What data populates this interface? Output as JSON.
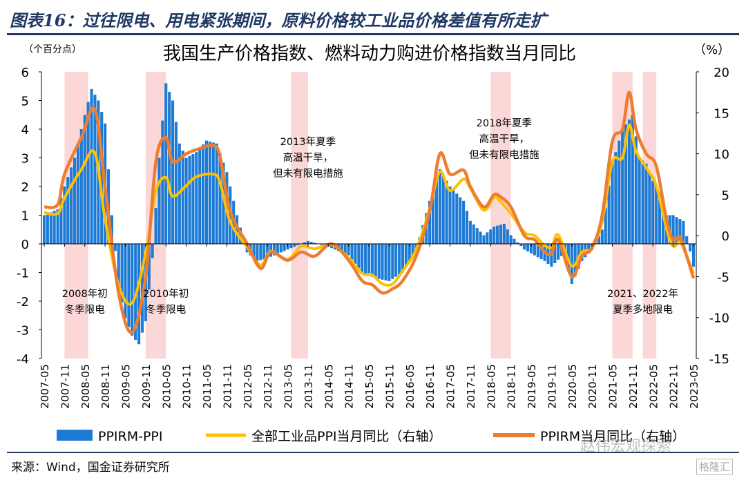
{
  "heading": "图表16：过往限电、用电紧张期间，原料价格较工业品价格差值有所走扩",
  "source": "来源：Wind，国金证券研究所",
  "watermark": "赵伟宏观探索",
  "logo": "格隆汇",
  "colors": {
    "bar": "#1d7bd6",
    "ppi": "#ffc000",
    "ppirm": "#ed7d31",
    "shade": "#fbd7d7",
    "axis": "#000000"
  },
  "chart_data": {
    "type": "bar",
    "title": "我国生产价格指数、燃料动力购进价格指数当月同比",
    "left_unit": "（个百分点）",
    "right_unit": "（%）",
    "left_ylim": [
      -4,
      6
    ],
    "left_ticks": [
      "6",
      "5",
      "4",
      "3",
      "2",
      "1",
      "0",
      "-1",
      "-2",
      "-3",
      "-4"
    ],
    "right_ylim": [
      -15,
      20
    ],
    "right_ticks": [
      "20",
      "15",
      "10",
      "5",
      "0",
      "-5",
      "-10",
      "-15"
    ],
    "x_ticks": [
      "2007-05",
      "2007-11",
      "2008-05",
      "2008-11",
      "2009-05",
      "2009-11",
      "2010-05",
      "2010-11",
      "2011-05",
      "2011-11",
      "2012-05",
      "2012-11",
      "2013-05",
      "2013-11",
      "2014-05",
      "2014-11",
      "2015-05",
      "2015-11",
      "2016-05",
      "2016-11",
      "2017-05",
      "2017-11",
      "2018-05",
      "2018-11",
      "2019-05",
      "2019-11",
      "2020-05",
      "2020-11",
      "2021-05",
      "2021-11",
      "2022-05",
      "2022-11",
      "2023-05"
    ],
    "legend": [
      {
        "name": "PPIRM-PPI",
        "kind": "bar"
      },
      {
        "name": "全部工业品PPI当月同比（右轴）",
        "kind": "line"
      },
      {
        "name": "PPIRM当月同比（右轴）",
        "kind": "line"
      }
    ],
    "shaded_periods": [
      {
        "start": "2007-11",
        "end": "2008-06"
      },
      {
        "start": "2009-11",
        "end": "2010-05"
      },
      {
        "start": "2013-06",
        "end": "2013-11"
      },
      {
        "start": "2018-05",
        "end": "2018-11"
      },
      {
        "start": "2021-05",
        "end": "2021-11"
      },
      {
        "start": "2022-02",
        "end": "2022-06"
      }
    ],
    "annotations": [
      {
        "lines": [
          "2008年初",
          "冬季限电"
        ],
        "x": "2008-05",
        "y": -1.85
      },
      {
        "lines": [
          "2010年初",
          "冬季限电"
        ],
        "x": "2010-05",
        "y": -1.85
      },
      {
        "lines": [
          "2013年夏季",
          "高温干旱，",
          "但未有限电措施"
        ],
        "x": "2013-11",
        "y": 3.45
      },
      {
        "lines": [
          "2018年夏季",
          "高温干旱，",
          "但未有限电措施"
        ],
        "x": "2018-09",
        "y": 4.1
      },
      {
        "lines": [
          "2021、2022年",
          "夏季多地限电"
        ],
        "x": "2022-02",
        "y": -1.85
      }
    ],
    "series_bar": {
      "name": "PPIRM-PPI",
      "points": [
        [
          "2007-05",
          1.0
        ],
        [
          "2007-09",
          1.2
        ],
        [
          "2007-11",
          2.0
        ],
        [
          "2008-02",
          3.0
        ],
        [
          "2008-05",
          4.5
        ],
        [
          "2008-07",
          5.4
        ],
        [
          "2008-09",
          5.0
        ],
        [
          "2008-11",
          4.2
        ],
        [
          "2009-01",
          1.0
        ],
        [
          "2009-03",
          -1.5
        ],
        [
          "2009-05",
          -2.6
        ],
        [
          "2009-07",
          -3.2
        ],
        [
          "2009-09",
          -3.5
        ],
        [
          "2009-11",
          -2.7
        ],
        [
          "2010-01",
          -0.5
        ],
        [
          "2010-03",
          3.0
        ],
        [
          "2010-05",
          5.6
        ],
        [
          "2010-07",
          5.0
        ],
        [
          "2010-09",
          3.5
        ],
        [
          "2010-11",
          3.0
        ],
        [
          "2011-02",
          3.2
        ],
        [
          "2011-05",
          3.6
        ],
        [
          "2011-08",
          3.5
        ],
        [
          "2011-11",
          2.5
        ],
        [
          "2012-02",
          1.0
        ],
        [
          "2012-05",
          -0.3
        ],
        [
          "2012-08",
          -0.6
        ],
        [
          "2012-11",
          -0.5
        ],
        [
          "2013-05",
          -0.2
        ],
        [
          "2013-11",
          0.1
        ],
        [
          "2014-05",
          -0.1
        ],
        [
          "2014-11",
          -0.4
        ],
        [
          "2015-03",
          -1.0
        ],
        [
          "2015-07",
          -1.2
        ],
        [
          "2015-11",
          -1.3
        ],
        [
          "2016-03",
          -1.0
        ],
        [
          "2016-07",
          -0.2
        ],
        [
          "2016-11",
          1.5
        ],
        [
          "2017-02",
          2.6
        ],
        [
          "2017-05",
          2.0
        ],
        [
          "2017-09",
          1.5
        ],
        [
          "2017-11",
          0.8
        ],
        [
          "2018-03",
          0.3
        ],
        [
          "2018-06",
          0.6
        ],
        [
          "2018-09",
          0.7
        ],
        [
          "2018-11",
          0.3
        ],
        [
          "2019-03",
          -0.2
        ],
        [
          "2019-06",
          -0.4
        ],
        [
          "2019-09",
          -0.6
        ],
        [
          "2019-11",
          -0.8
        ],
        [
          "2020-03",
          -0.3
        ],
        [
          "2020-05",
          -1.4
        ],
        [
          "2020-08",
          -0.6
        ],
        [
          "2020-11",
          -0.2
        ],
        [
          "2021-02",
          0.5
        ],
        [
          "2021-05",
          2.8
        ],
        [
          "2021-08",
          4.0
        ],
        [
          "2021-11",
          4.5
        ],
        [
          "2022-01",
          3.0
        ],
        [
          "2022-03",
          2.8
        ],
        [
          "2022-05",
          2.2
        ],
        [
          "2022-07",
          1.8
        ],
        [
          "2022-09",
          1.0
        ],
        [
          "2022-11",
          1.0
        ],
        [
          "2023-02",
          0.8
        ],
        [
          "2023-05",
          -0.8
        ]
      ]
    },
    "series_ppi": {
      "name": "全部工业品PPI当月同比（右轴）",
      "points": [
        [
          "2007-05",
          2.8
        ],
        [
          "2007-09",
          2.7
        ],
        [
          "2007-11",
          4.6
        ],
        [
          "2008-04",
          8.1
        ],
        [
          "2008-08",
          10.1
        ],
        [
          "2008-11",
          2.0
        ],
        [
          "2009-03",
          -6.0
        ],
        [
          "2009-07",
          -8.2
        ],
        [
          "2009-11",
          -2.1
        ],
        [
          "2010-02",
          5.4
        ],
        [
          "2010-05",
          7.1
        ],
        [
          "2010-07",
          4.8
        ],
        [
          "2010-11",
          6.1
        ],
        [
          "2011-02",
          7.2
        ],
        [
          "2011-07",
          7.5
        ],
        [
          "2011-09",
          6.5
        ],
        [
          "2011-12",
          1.7
        ],
        [
          "2012-05",
          -1.4
        ],
        [
          "2012-09",
          -3.6
        ],
        [
          "2012-12",
          -1.9
        ],
        [
          "2013-05",
          -2.9
        ],
        [
          "2013-09",
          -1.3
        ],
        [
          "2014-01",
          -1.6
        ],
        [
          "2014-06",
          -1.1
        ],
        [
          "2014-11",
          -2.7
        ],
        [
          "2015-03",
          -4.6
        ],
        [
          "2015-06",
          -4.8
        ],
        [
          "2015-09",
          -5.9
        ],
        [
          "2015-12",
          -5.9
        ],
        [
          "2016-03",
          -4.3
        ],
        [
          "2016-07",
          -1.7
        ],
        [
          "2016-11",
          3.3
        ],
        [
          "2017-02",
          7.8
        ],
        [
          "2017-05",
          5.5
        ],
        [
          "2017-09",
          6.9
        ],
        [
          "2017-11",
          5.8
        ],
        [
          "2018-03",
          3.1
        ],
        [
          "2018-06",
          4.7
        ],
        [
          "2018-08",
          4.1
        ],
        [
          "2018-11",
          2.7
        ],
        [
          "2019-03",
          0.4
        ],
        [
          "2019-06",
          0.0
        ],
        [
          "2019-09",
          -1.2
        ],
        [
          "2019-11",
          -1.4
        ],
        [
          "2020-01",
          0.1
        ],
        [
          "2020-05",
          -3.7
        ],
        [
          "2020-08",
          -2.0
        ],
        [
          "2020-11",
          -1.5
        ],
        [
          "2021-02",
          1.7
        ],
        [
          "2021-05",
          9.0
        ],
        [
          "2021-08",
          9.5
        ],
        [
          "2021-10",
          13.5
        ],
        [
          "2021-12",
          10.3
        ],
        [
          "2022-03",
          8.3
        ],
        [
          "2022-06",
          6.1
        ],
        [
          "2022-09",
          0.9
        ],
        [
          "2022-11",
          -1.3
        ],
        [
          "2023-01",
          -0.8
        ],
        [
          "2023-03",
          -2.5
        ],
        [
          "2023-05",
          -4.6
        ]
      ]
    },
    "series_ppirm": {
      "name": "PPIRM当月同比（右轴）",
      "points": [
        [
          "2007-05",
          3.5
        ],
        [
          "2007-09",
          3.8
        ],
        [
          "2007-11",
          7.5
        ],
        [
          "2008-04",
          12.0
        ],
        [
          "2008-08",
          15.4
        ],
        [
          "2008-11",
          6.0
        ],
        [
          "2009-03",
          -7.0
        ],
        [
          "2009-07",
          -11.8
        ],
        [
          "2009-11",
          -5.0
        ],
        [
          "2010-02",
          9.0
        ],
        [
          "2010-05",
          12.0
        ],
        [
          "2010-07",
          9.0
        ],
        [
          "2010-11",
          10.0
        ],
        [
          "2011-02",
          10.5
        ],
        [
          "2011-07",
          11.0
        ],
        [
          "2011-09",
          9.6
        ],
        [
          "2011-12",
          3.0
        ],
        [
          "2012-05",
          -1.0
        ],
        [
          "2012-09",
          -4.0
        ],
        [
          "2012-12",
          -2.0
        ],
        [
          "2013-05",
          -3.0
        ],
        [
          "2013-09",
          -2.0
        ],
        [
          "2014-01",
          -2.5
        ],
        [
          "2014-06",
          -1.0
        ],
        [
          "2014-11",
          -3.0
        ],
        [
          "2015-03",
          -5.5
        ],
        [
          "2015-06",
          -6.0
        ],
        [
          "2015-09",
          -7.0
        ],
        [
          "2015-12",
          -6.5
        ],
        [
          "2016-03",
          -5.5
        ],
        [
          "2016-07",
          -2.5
        ],
        [
          "2016-11",
          3.0
        ],
        [
          "2017-02",
          10.0
        ],
        [
          "2017-05",
          7.5
        ],
        [
          "2017-09",
          8.0
        ],
        [
          "2017-11",
          6.0
        ],
        [
          "2018-03",
          3.5
        ],
        [
          "2018-06",
          5.0
        ],
        [
          "2018-08",
          4.7
        ],
        [
          "2018-11",
          3.5
        ],
        [
          "2019-03",
          0.0
        ],
        [
          "2019-06",
          -0.5
        ],
        [
          "2019-09",
          -2.0
        ],
        [
          "2019-11",
          -2.2
        ],
        [
          "2020-01",
          -0.5
        ],
        [
          "2020-05",
          -5.0
        ],
        [
          "2020-08",
          -2.5
        ],
        [
          "2020-11",
          -1.5
        ],
        [
          "2021-02",
          2.5
        ],
        [
          "2021-05",
          11.5
        ],
        [
          "2021-08",
          13.0
        ],
        [
          "2021-10",
          17.5
        ],
        [
          "2021-12",
          13.0
        ],
        [
          "2022-03",
          10.0
        ],
        [
          "2022-06",
          8.5
        ],
        [
          "2022-09",
          2.0
        ],
        [
          "2022-11",
          -0.5
        ],
        [
          "2023-01",
          -0.2
        ],
        [
          "2023-03",
          -2.5
        ],
        [
          "2023-05",
          -5.2
        ]
      ]
    }
  }
}
